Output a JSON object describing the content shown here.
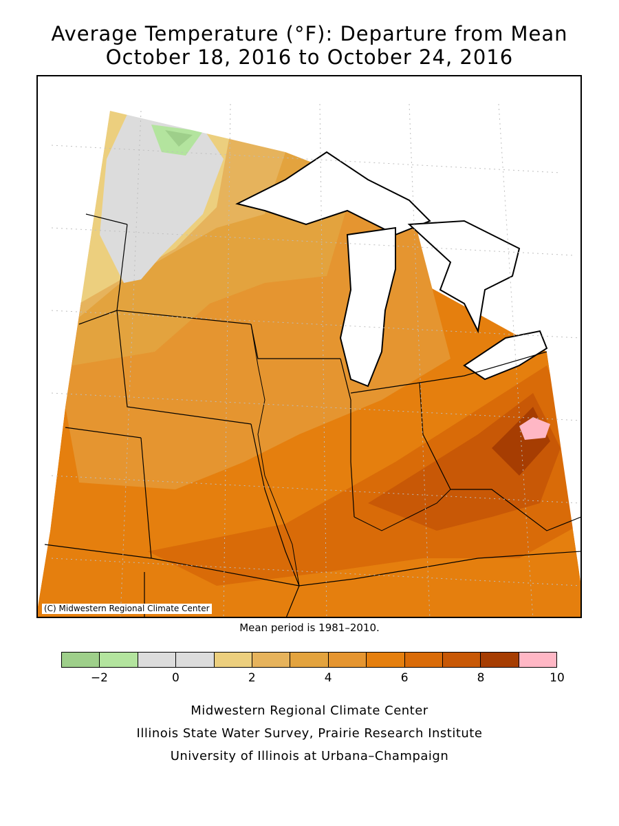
{
  "title_line1": "Average Temperature (°F): Departure from Mean",
  "title_line2": "October 18, 2016 to October 24, 2016",
  "copyright": "(C) Midwestern Regional Climate Center",
  "mean_period": "Mean period is 1981–2010.",
  "legend": {
    "colors": [
      "#9ecf8a",
      "#b3e49e",
      "#dcdcdc",
      "#dcdcdc",
      "#eccf7e",
      "#e6b35c",
      "#e3a33e",
      "#e59530",
      "#e57f0e",
      "#d96b08",
      "#c85806",
      "#a63d02",
      "#ffb7c5"
    ],
    "ticks": [
      {
        "label": "−2",
        "value": -2
      },
      {
        "label": "0",
        "value": 0
      },
      {
        "label": "2",
        "value": 2
      },
      {
        "label": "4",
        "value": 4
      },
      {
        "label": "6",
        "value": 6
      },
      {
        "label": "8",
        "value": 8
      },
      {
        "label": "10",
        "value": 10
      }
    ],
    "min": -3,
    "max": 10
  },
  "footer": {
    "line1": "Midwestern Regional Climate Center",
    "line2": "Illinois State Water Survey, Prairie Research Institute",
    "line3": "University of Illinois at Urbana–Champaign"
  }
}
